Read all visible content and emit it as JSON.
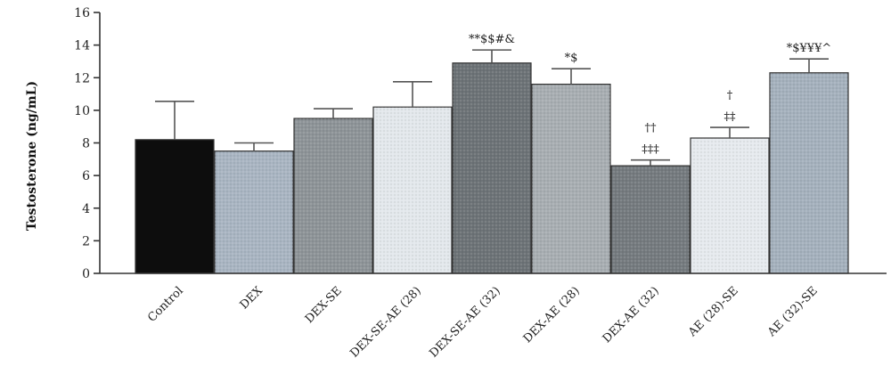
{
  "chart_data": {
    "type": "bar",
    "ylabel": "Testosterone (ng/mL)",
    "ylim": [
      0,
      16
    ],
    "yticks": [
      0,
      2,
      4,
      6,
      8,
      10,
      12,
      14,
      16
    ],
    "categories": [
      "Control",
      "DEX",
      "DEX-SE",
      "DEX-SE-AE (28)",
      "DEX-SE-AE (32)",
      "DEX-AE (28)",
      "DEX-AE (32)",
      "AE (28)-SE",
      "AE (32)-SE"
    ],
    "values": [
      8.2,
      7.5,
      9.5,
      10.2,
      12.9,
      11.6,
      6.6,
      8.3,
      12.3
    ],
    "errors": [
      2.35,
      0.5,
      0.6,
      1.55,
      0.8,
      0.95,
      0.35,
      0.65,
      0.85
    ],
    "annotations": [
      "",
      "",
      "",
      "",
      "**$$#&",
      "*$",
      "††\n‡‡‡",
      "†\n‡‡",
      "*$¥¥¥^"
    ],
    "bar_colors": [
      "#0d0d0d",
      "#a9b5c2",
      "#8e9498",
      "#e3e8ec",
      "#6d7377",
      "#a8aeb2",
      "#757b7f",
      "#e6eaee",
      "#a5b1bd"
    ],
    "grid": false
  }
}
